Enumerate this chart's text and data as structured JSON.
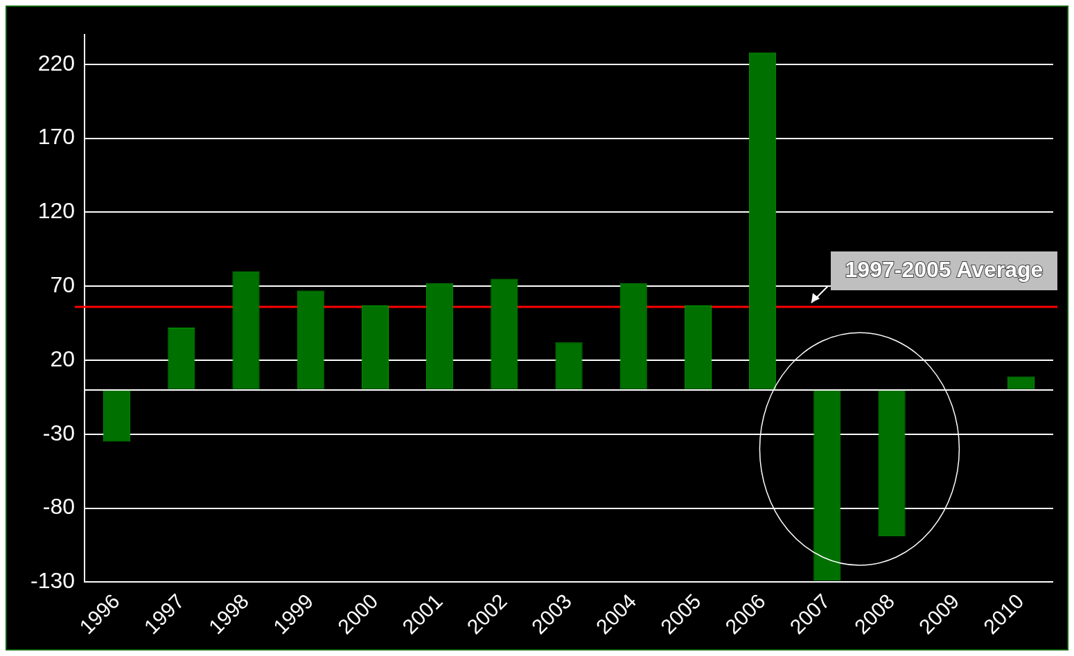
{
  "chart_data": {
    "type": "bar",
    "categories": [
      "1996",
      "1997",
      "1998",
      "1999",
      "2000",
      "2001",
      "2002",
      "2003",
      "2004",
      "2005",
      "2006",
      "2007",
      "2008",
      "2009",
      "2010"
    ],
    "values": [
      -35,
      42,
      80,
      67,
      57,
      72,
      75,
      32,
      72,
      57,
      228,
      -129,
      -99,
      null,
      9
    ],
    "color": "#007000",
    "ylim": [
      -130,
      240
    ],
    "yticks": [
      -130,
      -80,
      -30,
      {
        "value": 0,
        "label": null
      },
      20,
      70,
      120,
      170,
      220
    ],
    "grid": "y",
    "legend": false,
    "ref_lines": [
      {
        "axis": "y",
        "value": 56,
        "label": "1997-2005 Average",
        "color": "#ff0000"
      }
    ]
  }
}
